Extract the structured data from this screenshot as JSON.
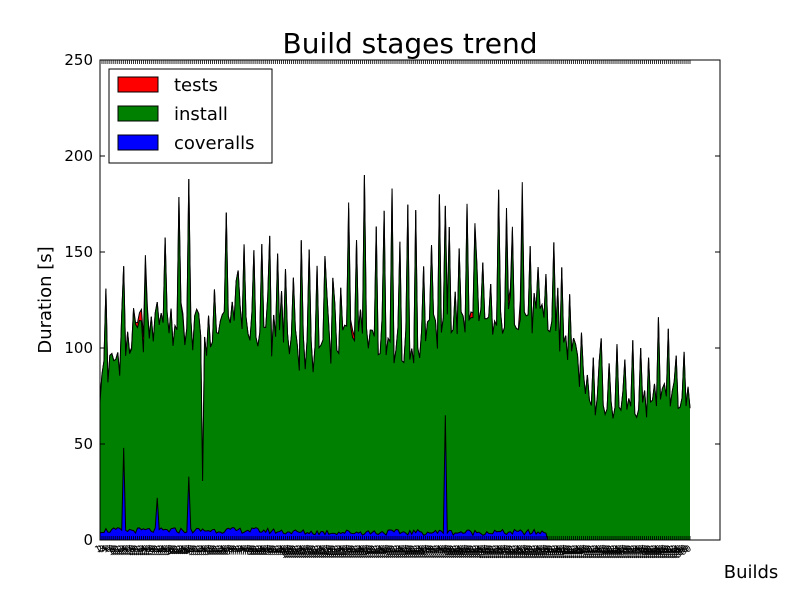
{
  "chart_data": {
    "type": "area",
    "stacked": true,
    "title": "Build stages trend",
    "xlabel": "Builds",
    "ylabel": "Duration [s]",
    "ylim": [
      0,
      250
    ],
    "yticks": [
      0,
      50,
      100,
      150,
      200,
      250
    ],
    "build_count": 300,
    "legend_position": "top-left",
    "series": [
      {
        "name": "tests",
        "color": "#ff0000",
        "profile": [
          [
            0,
            0
          ],
          [
            10,
            0
          ],
          [
            18,
            1
          ],
          [
            20,
            4
          ],
          [
            22,
            8
          ],
          [
            24,
            2
          ],
          [
            26,
            0
          ],
          [
            40,
            0
          ],
          [
            42,
            2
          ],
          [
            44,
            0
          ],
          [
            60,
            0
          ],
          [
            80,
            0
          ],
          [
            100,
            0
          ],
          [
            125,
            0
          ],
          [
            126,
            3
          ],
          [
            128,
            4
          ],
          [
            130,
            0
          ],
          [
            150,
            0
          ],
          [
            187,
            0
          ],
          [
            188,
            3
          ],
          [
            190,
            2
          ],
          [
            192,
            0
          ],
          [
            205,
            0
          ],
          [
            206,
            5
          ],
          [
            208,
            4
          ],
          [
            210,
            0
          ],
          [
            212,
            0
          ],
          [
            213,
            10
          ],
          [
            214,
            10
          ],
          [
            215,
            0
          ],
          [
            240,
            0
          ],
          [
            300,
            0
          ]
        ]
      },
      {
        "name": "install",
        "color": "#008000",
        "profile": [
          [
            0,
            75
          ],
          [
            5,
            85
          ],
          [
            10,
            90
          ],
          [
            15,
            95
          ],
          [
            20,
            100
          ],
          [
            25,
            105
          ],
          [
            30,
            110
          ],
          [
            35,
            112
          ],
          [
            40,
            110
          ],
          [
            45,
            105
          ],
          [
            50,
            103
          ],
          [
            55,
            100
          ],
          [
            60,
            103
          ],
          [
            65,
            106
          ],
          [
            70,
            108
          ],
          [
            75,
            106
          ],
          [
            80,
            104
          ],
          [
            85,
            100
          ],
          [
            90,
            98
          ],
          [
            95,
            96
          ],
          [
            100,
            95
          ],
          [
            105,
            92
          ],
          [
            110,
            95
          ],
          [
            115,
            98
          ],
          [
            120,
            100
          ],
          [
            125,
            104
          ],
          [
            130,
            108
          ],
          [
            135,
            106
          ],
          [
            140,
            104
          ],
          [
            145,
            100
          ],
          [
            150,
            96
          ],
          [
            155,
            95
          ],
          [
            160,
            97
          ],
          [
            165,
            100
          ],
          [
            170,
            104
          ],
          [
            175,
            106
          ],
          [
            180,
            108
          ],
          [
            185,
            110
          ],
          [
            190,
            108
          ],
          [
            195,
            106
          ],
          [
            200,
            106
          ],
          [
            205,
            112
          ],
          [
            210,
            115
          ],
          [
            215,
            115
          ],
          [
            220,
            112
          ],
          [
            225,
            110
          ],
          [
            230,
            108
          ],
          [
            235,
            102
          ],
          [
            240,
            95
          ],
          [
            245,
            85
          ],
          [
            250,
            75
          ],
          [
            255,
            72
          ],
          [
            260,
            70
          ],
          [
            265,
            72
          ],
          [
            270,
            74
          ],
          [
            275,
            72
          ],
          [
            280,
            70
          ],
          [
            285,
            72
          ],
          [
            290,
            74
          ],
          [
            295,
            75
          ],
          [
            300,
            75
          ]
        ],
        "spikes": [
          [
            3,
            125
          ],
          [
            11,
            112
          ],
          [
            17,
            115
          ],
          [
            23,
            138
          ],
          [
            28,
            112
          ],
          [
            33,
            152
          ],
          [
            37,
            95
          ],
          [
            40,
            175
          ],
          [
            45,
            155
          ],
          [
            48,
            112
          ],
          [
            52,
            30
          ],
          [
            55,
            112
          ],
          [
            58,
            125
          ],
          [
            61,
            110
          ],
          [
            64,
            165
          ],
          [
            70,
            135
          ],
          [
            73,
            150
          ],
          [
            78,
            145
          ],
          [
            82,
            150
          ],
          [
            86,
            155
          ],
          [
            90,
            145
          ],
          [
            94,
            138
          ],
          [
            98,
            132
          ],
          [
            102,
            152
          ],
          [
            106,
            148
          ],
          [
            110,
            138
          ],
          [
            114,
            145
          ],
          [
            118,
            133
          ],
          [
            122,
            128
          ],
          [
            126,
            168
          ],
          [
            130,
            152
          ],
          [
            134,
            187
          ],
          [
            140,
            160
          ],
          [
            144,
            168
          ],
          [
            148,
            178
          ],
          [
            152,
            152
          ],
          [
            156,
            172
          ],
          [
            160,
            168
          ],
          [
            164,
            140
          ],
          [
            168,
            150
          ],
          [
            172,
            175
          ],
          [
            177,
            158
          ],
          [
            182,
            148
          ],
          [
            186,
            170
          ],
          [
            190,
            158
          ],
          [
            194,
            142
          ],
          [
            198,
            130
          ],
          [
            202,
            178
          ],
          [
            206,
            165
          ],
          [
            209,
            158
          ],
          [
            214,
            172
          ],
          [
            218,
            150
          ],
          [
            222,
            138
          ],
          [
            226,
            135
          ],
          [
            230,
            155
          ],
          [
            234,
            142
          ],
          [
            238,
            128
          ],
          [
            244,
            108
          ],
          [
            250,
            95
          ],
          [
            254,
            105
          ],
          [
            258,
            92
          ],
          [
            262,
            102
          ],
          [
            266,
            94
          ],
          [
            270,
            104
          ],
          [
            274,
            100
          ],
          [
            278,
            95
          ],
          [
            283,
            116
          ],
          [
            288,
            110
          ],
          [
            292,
            96
          ],
          [
            296,
            98
          ]
        ],
        "dips": [
          [
            52,
            25
          ]
        ]
      },
      {
        "name": "coveralls",
        "color": "#0000ff",
        "profile": [
          [
            0,
            5
          ],
          [
            20,
            5
          ],
          [
            40,
            5
          ],
          [
            60,
            5
          ],
          [
            80,
            5
          ],
          [
            100,
            4
          ],
          [
            120,
            4
          ],
          [
            140,
            4
          ],
          [
            160,
            4
          ],
          [
            180,
            4
          ],
          [
            200,
            4
          ],
          [
            220,
            4
          ],
          [
            226,
            4
          ],
          [
            227,
            0
          ],
          [
            300,
            0
          ]
        ],
        "spikes": [
          [
            12,
            48
          ],
          [
            29,
            22
          ],
          [
            45,
            33
          ],
          [
            175,
            65
          ]
        ]
      }
    ]
  }
}
